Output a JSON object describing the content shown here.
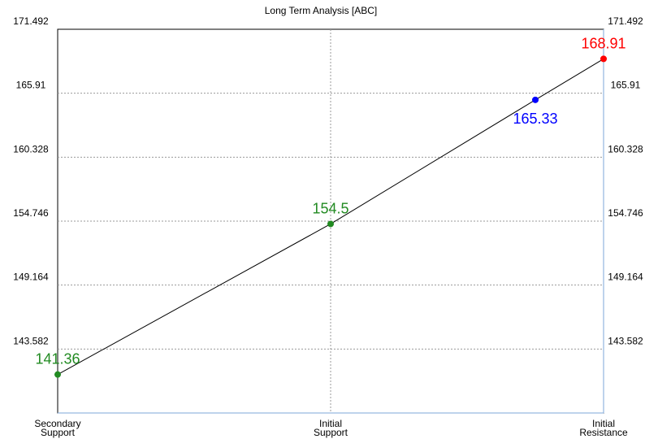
{
  "chart_data": {
    "type": "line",
    "title": "Long Term Analysis [ABC]",
    "categories": [
      {
        "line1": "Secondary",
        "line2": "Support"
      },
      {
        "line1": "Initial",
        "line2": "Support"
      },
      {
        "line1": "Initial",
        "line2": "Resistance"
      }
    ],
    "ylim": [
      138.0,
      171.492
    ],
    "yticks": [
      "171.492",
      "165.91",
      "160.328",
      "154.746",
      "149.164",
      "143.582"
    ],
    "grid": true,
    "line_color": "#000000",
    "points": [
      {
        "x": 0,
        "y": 141.36,
        "label": "141.36",
        "color": "#228b22",
        "label_pos": "above"
      },
      {
        "x": 1,
        "y": 154.5,
        "label": "154.5",
        "color": "#228b22",
        "label_pos": "above"
      },
      {
        "x": 1.75,
        "y": 165.33,
        "label": "165.33",
        "color": "#0000ff",
        "label_pos": "below"
      },
      {
        "x": 2,
        "y": 168.91,
        "label": "168.91",
        "color": "#ff0000",
        "label_pos": "above"
      }
    ]
  }
}
